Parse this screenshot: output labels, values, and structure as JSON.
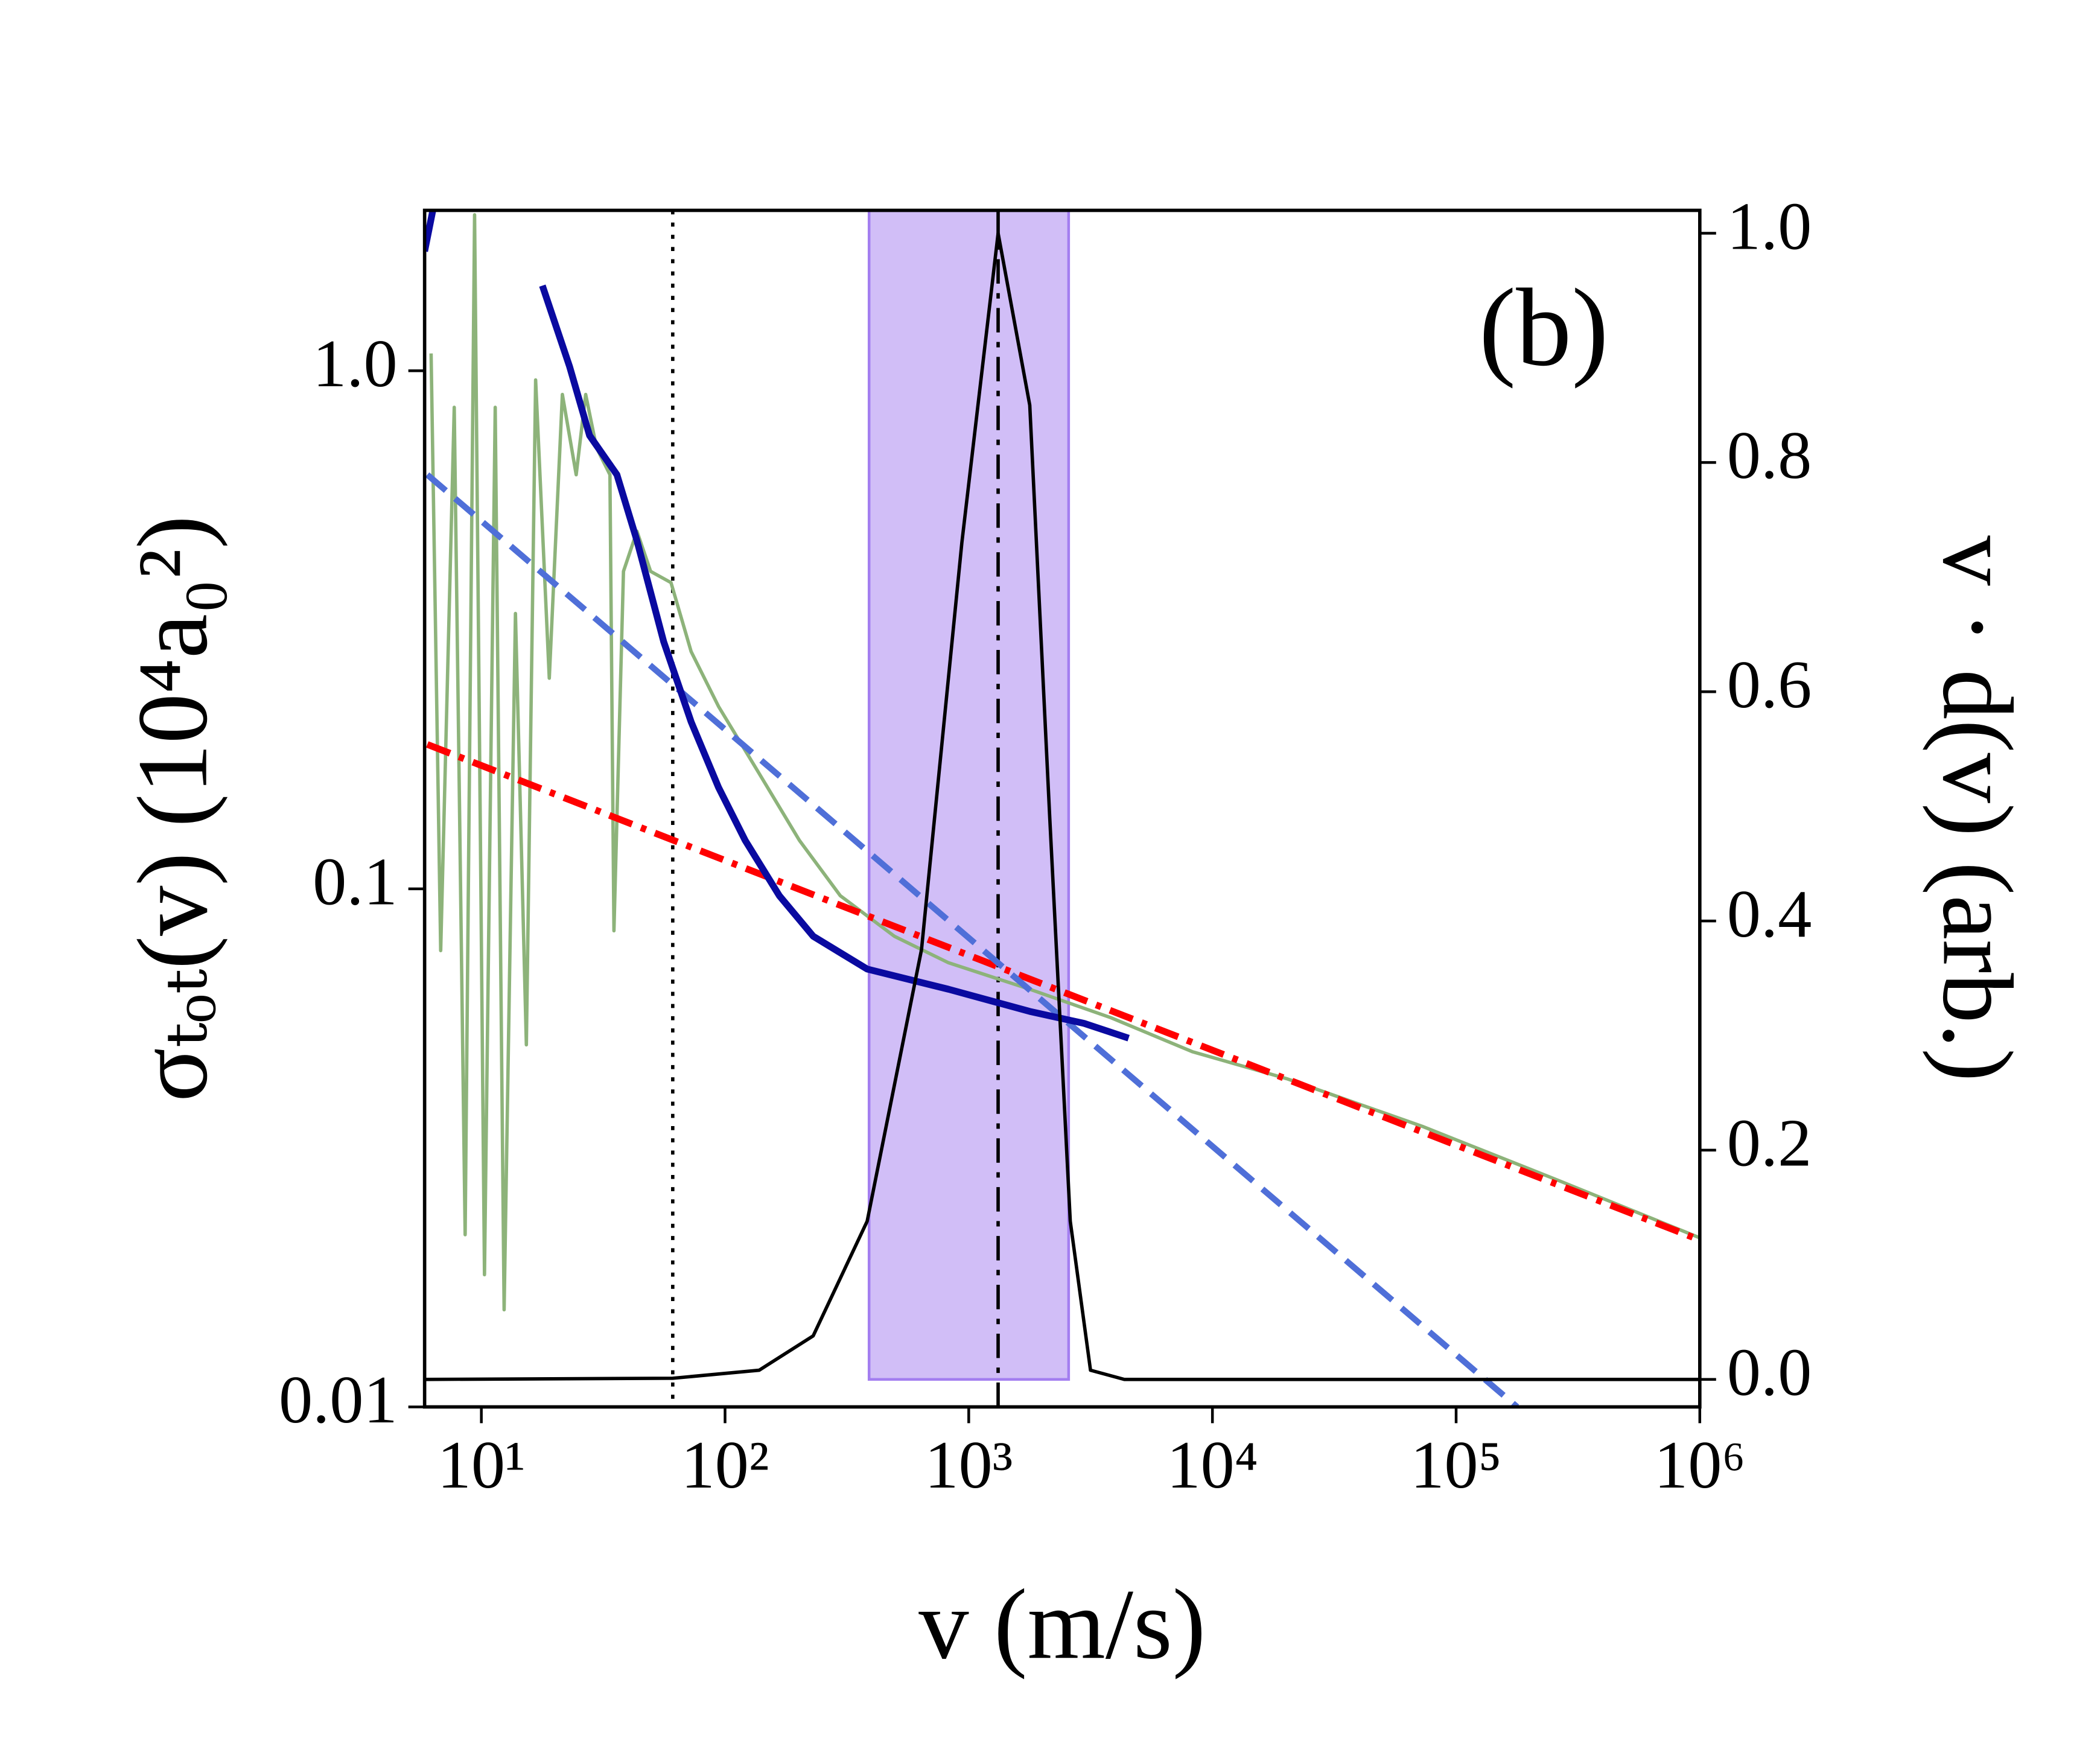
{
  "chart_data": {
    "type": "line",
    "annotation": "(b)",
    "xlabel": "v (m/s)",
    "ylabel": "σₜₒₜ(v) (10⁴a₀²)",
    "y2label": "v · d(v) (arb.)",
    "xscale": "log",
    "yscale": "log",
    "xlim": [
      5.85,
      1000000
    ],
    "ylim": [
      0.01,
      2.04
    ],
    "y2lim": [
      -0.024,
      1.02
    ],
    "xticks": [
      {
        "value": 10,
        "label": "10¹"
      },
      {
        "value": 100,
        "label": "10²"
      },
      {
        "value": 1000,
        "label": "10³"
      },
      {
        "value": 10000,
        "label": "10⁴"
      },
      {
        "value": 100000,
        "label": "10⁵"
      },
      {
        "value": 1000000,
        "label": "10⁶"
      }
    ],
    "yticks": [
      0.01,
      0.1,
      {
        "value": 1,
        "label": "1.0"
      }
    ],
    "y2ticks": [
      {
        "value": 0,
        "label": "0.0"
      },
      0.2,
      0.4,
      0.6,
      0.8,
      {
        "value": 1,
        "label": "1.0"
      }
    ],
    "vspan": {
      "x": [
        390,
        2570
      ],
      "color": "#a37ef0"
    },
    "vlines": [
      {
        "x": 61,
        "style": "dotted",
        "color": "#000000"
      },
      {
        "x": 1320,
        "style": "dashdot",
        "color": "#000000"
      }
    ],
    "series": [
      {
        "color": "#8db37a",
        "style": "solid",
        "width": 2.5,
        "x": [
          6.22,
          6.81,
          7.74,
          8.58,
          9.38,
          10.3,
          11.4,
          12.4,
          13.8,
          15.3,
          16.7,
          19,
          21.5,
          24.5,
          26.8,
          29.7,
          33.7,
          35,
          38.3,
          43.5,
          49.5,
          60,
          72.6,
          94,
          138,
          202,
          297,
          495,
          826,
          1780,
          3830,
          8260,
          20200,
          72600,
          261000,
          1000000
        ],
        "values": [
          1.08,
          0.076,
          0.85,
          0.0215,
          2.0,
          0.018,
          0.85,
          0.0154,
          0.34,
          0.05,
          0.96,
          0.255,
          0.9,
          0.63,
          0.9,
          0.71,
          0.63,
          0.083,
          0.41,
          0.49,
          0.41,
          0.39,
          0.287,
          0.225,
          0.167,
          0.124,
          0.097,
          0.081,
          0.072,
          0.064,
          0.0564,
          0.0485,
          0.043,
          0.0348,
          0.0274,
          0.0212
        ]
      },
      {
        "color": "#ff0000",
        "style": "dashdot",
        "width": 5,
        "x": [
          6,
          1000000
        ],
        "values": [
          0.19,
          0.021
        ]
      },
      {
        "color": "#4f6fd8",
        "style": "dashed",
        "width": 4.5,
        "x": [
          6,
          178000
        ],
        "values": [
          0.63,
          0.01
        ]
      },
      {
        "color": "#0a0aa0",
        "style": "solid",
        "width": 5,
        "x": [
          5.85,
          6.4,
          13.5,
          17.8,
          23,
          27.8,
          36,
          43.5,
          56,
          72.6,
          94,
          121,
          167,
          230,
          383,
          826,
          1780,
          2970,
          4530
        ],
        "values": [
          1.7,
          2.1,
          null,
          1.46,
          1.02,
          0.75,
          0.63,
          0.47,
          0.3,
          0.21,
          0.157,
          0.124,
          0.097,
          0.081,
          0.07,
          0.064,
          0.058,
          0.055,
          0.0515
        ]
      },
      {
        "color": "#000000",
        "style": "solid",
        "width": 2.5,
        "axis": "y2",
        "x": [
          5.85,
          61,
          138,
          230,
          383,
          640,
          937,
          1320,
          1780,
          2150,
          2610,
          3160,
          4350,
          1000000
        ],
        "values": [
          0,
          0.001,
          0.008,
          0.038,
          0.138,
          0.375,
          0.73,
          1.0,
          0.85,
          0.49,
          0.138,
          0.008,
          0,
          0
        ]
      }
    ]
  }
}
